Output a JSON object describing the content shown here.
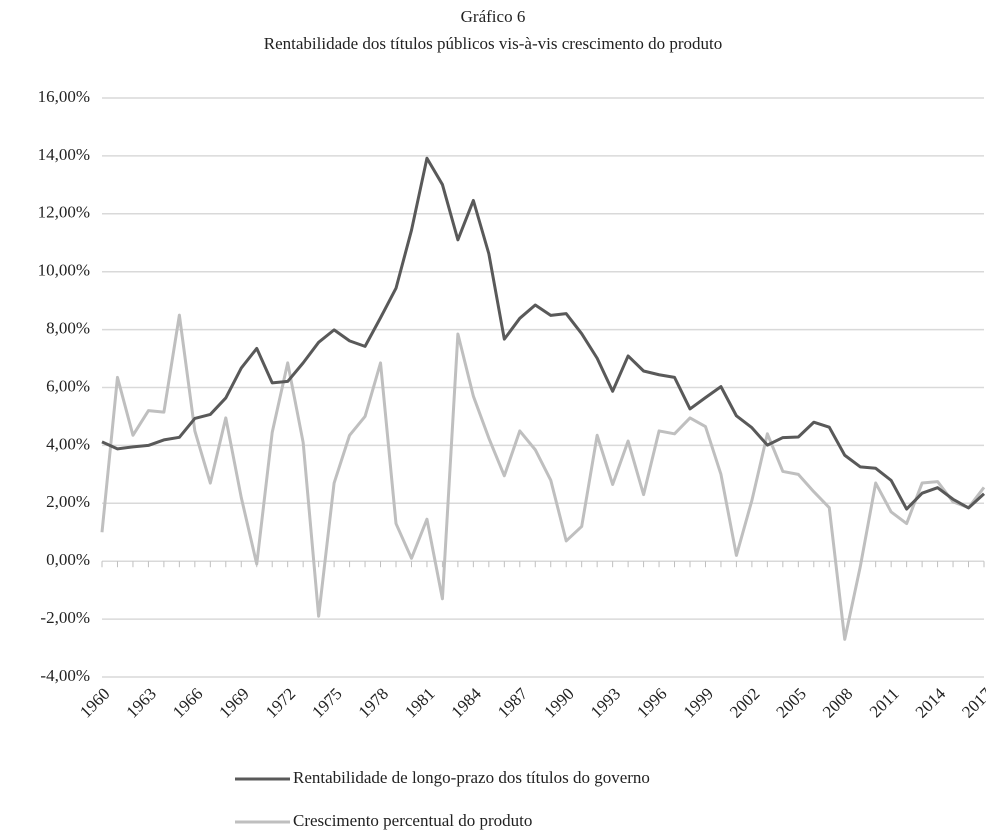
{
  "chart_data": {
    "type": "line",
    "title": "Gráfico 6",
    "subtitle": "Rentabilidade dos títulos públicos vis-à-vis crescimento do produto",
    "categories": [
      "1960",
      null,
      null,
      "1963",
      null,
      null,
      "1966",
      null,
      null,
      "1969",
      null,
      null,
      "1972",
      null,
      null,
      "1975",
      null,
      null,
      "1978",
      null,
      null,
      "1981",
      null,
      null,
      "1984",
      null,
      null,
      "1987",
      null,
      null,
      "1990",
      null,
      null,
      "1993",
      null,
      null,
      "1996",
      null,
      null,
      "1999",
      null,
      null,
      "2002",
      null,
      null,
      "2005",
      null,
      null,
      "2008",
      null,
      null,
      "2011",
      null,
      null,
      "2014",
      null,
      null,
      "2017"
    ],
    "series": [
      {
        "name": "Rentabilidade de longo-prazo dos títulos do governo",
        "color": "#595959",
        "values": [
          4.12,
          3.88,
          3.95,
          4.0,
          4.19,
          4.28,
          4.93,
          5.07,
          5.64,
          6.67,
          7.35,
          6.16,
          6.21,
          6.85,
          7.56,
          7.99,
          7.61,
          7.42,
          8.41,
          9.43,
          11.43,
          13.92,
          13.01,
          11.1,
          12.46,
          10.62,
          7.67,
          8.39,
          8.85,
          8.49,
          8.55,
          7.86,
          7.01,
          5.87,
          7.09,
          6.57,
          6.44,
          6.35,
          5.26,
          5.65,
          6.03,
          5.02,
          4.61,
          4.01,
          4.27,
          4.29,
          4.8,
          4.63,
          3.66,
          3.26,
          3.21,
          2.79,
          1.8,
          2.35,
          2.54,
          2.14,
          1.84,
          2.33
        ]
      },
      {
        "name": "Crescimento percentual do produto",
        "color": "#bfbfbf",
        "values": [
          1.0,
          6.35,
          4.35,
          5.2,
          5.15,
          8.5,
          4.5,
          2.7,
          4.95,
          2.2,
          -0.1,
          4.45,
          6.85,
          4.1,
          -1.9,
          2.7,
          4.35,
          5.0,
          6.85,
          1.3,
          0.1,
          1.45,
          -1.3,
          7.85,
          5.7,
          4.25,
          2.95,
          4.5,
          3.85,
          2.8,
          0.7,
          1.2,
          4.35,
          2.65,
          4.15,
          2.3,
          4.5,
          4.4,
          4.95,
          4.65,
          3.0,
          0.2,
          2.1,
          4.4,
          3.1,
          3.0,
          2.4,
          1.85,
          -2.7,
          -0.2,
          2.7,
          1.7,
          1.3,
          2.7,
          2.75,
          2.05,
          1.85,
          2.55
        ]
      }
    ],
    "ylim": [
      -4,
      16
    ],
    "yticks": [
      {
        "value": -4,
        "label": "-4,00%"
      },
      {
        "value": -2,
        "label": "-2,00%"
      },
      {
        "value": 0,
        "label": "0,00%"
      },
      {
        "value": 2,
        "label": "2,00%"
      },
      {
        "value": 4,
        "label": "4,00%"
      },
      {
        "value": 6,
        "label": "6,00%"
      },
      {
        "value": 8,
        "label": "8,00%"
      },
      {
        "value": 10,
        "label": "10,00%"
      },
      {
        "value": 12,
        "label": "12,00%"
      },
      {
        "value": 14,
        "label": "14,00%"
      },
      {
        "value": 16,
        "label": "16,00%"
      }
    ],
    "grid": true
  }
}
